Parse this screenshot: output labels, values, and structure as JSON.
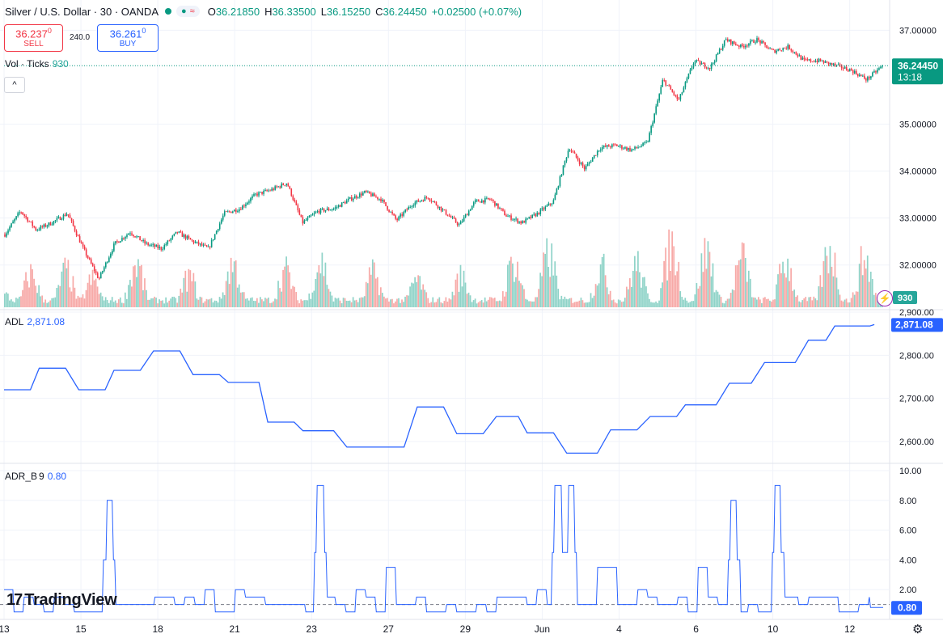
{
  "header": {
    "symbol": "Silver / U.S. Dollar · 30 · OANDA",
    "open_label": "O",
    "open": "36.21850",
    "high_label": "H",
    "high": "36.33500",
    "low_label": "L",
    "low": "36.15250",
    "close_label": "C",
    "close": "36.24450",
    "change": "+0.02500 (+0.07%)"
  },
  "trade": {
    "sell_price": "36.237",
    "sell_sup": "0",
    "sell_label": "SELL",
    "spread": "240.0",
    "buy_price": "36.261",
    "buy_sup": "0",
    "buy_label": "BUY"
  },
  "vol_legend": {
    "name": "Vol · Ticks",
    "value": "930"
  },
  "adl_legend": {
    "name": "ADL",
    "value": "2,871.08"
  },
  "adr_legend": {
    "name": "ADR_B",
    "param": "9",
    "value": "0.80"
  },
  "brand": {
    "name": "TradingView"
  },
  "icons": {
    "collapse": "chevron-up-icon",
    "settings": "gear-icon",
    "alert": "lightning-icon",
    "logo": "tradingview-logo-icon"
  },
  "colors": {
    "up": "#089981",
    "down": "#f23645",
    "vol_up": "#8fd3c8",
    "vol_down": "#f7a9a7",
    "indicator": "#2962ff"
  },
  "chart_data": [
    {
      "type": "candlestick",
      "title": "Silver / U.S. Dollar · 30 · OANDA",
      "x_tick_labels": [
        "13",
        "15",
        "18",
        "21",
        "23",
        "27",
        "29",
        "Jun",
        "4",
        "6",
        "10",
        "12"
      ],
      "ylim": [
        31.1,
        37.3
      ],
      "y_tick_labels": [
        "37.00000",
        "35.00000",
        "34.00000",
        "33.00000",
        "32.00000"
      ],
      "last_price": "36.24450",
      "countdown": "13:18",
      "close_path": [
        32.65,
        33.15,
        32.75,
        32.9,
        33.1,
        32.35,
        31.7,
        32.45,
        32.7,
        32.45,
        32.35,
        32.7,
        32.5,
        32.35,
        33.1,
        33.2,
        33.5,
        33.6,
        33.75,
        32.9,
        33.15,
        33.2,
        33.4,
        33.55,
        33.4,
        32.95,
        33.3,
        33.45,
        33.15,
        32.85,
        33.35,
        33.4,
        33.05,
        32.9,
        33.1,
        33.35,
        34.5,
        34.05,
        34.5,
        34.55,
        34.45,
        34.6,
        35.95,
        35.5,
        36.35,
        36.2,
        36.8,
        36.65,
        36.8,
        36.55,
        36.65,
        36.35,
        36.35,
        36.25,
        36.15,
        35.95,
        36.24
      ]
    },
    {
      "type": "bar",
      "name": "Vol · Ticks",
      "last_value": "930",
      "peaks": [
        [
          0.0,
          0.2
        ],
        [
          0.03,
          0.55
        ],
        [
          0.07,
          0.6
        ],
        [
          0.1,
          0.45
        ],
        [
          0.15,
          0.7
        ],
        [
          0.21,
          0.5
        ],
        [
          0.26,
          0.7
        ],
        [
          0.32,
          0.6
        ],
        [
          0.36,
          0.75
        ],
        [
          0.42,
          0.55
        ],
        [
          0.47,
          0.45
        ],
        [
          0.52,
          0.5
        ],
        [
          0.58,
          0.75
        ],
        [
          0.62,
          0.85
        ],
        [
          0.68,
          0.65
        ],
        [
          0.72,
          0.7
        ],
        [
          0.76,
          1.0
        ],
        [
          0.8,
          0.9
        ],
        [
          0.84,
          0.8
        ],
        [
          0.89,
          0.75
        ],
        [
          0.94,
          0.95
        ],
        [
          0.98,
          0.8
        ]
      ]
    },
    {
      "type": "line",
      "name": "ADL",
      "last_value": "2,871.08",
      "ylim": [
        2555,
        2900
      ],
      "y_tick_labels": [
        "2,900.00",
        "2,800.00",
        "2,700.00",
        "2,600.00"
      ],
      "steps": [
        [
          0,
          2720
        ],
        [
          0.03,
          2720
        ],
        [
          0.04,
          2770
        ],
        [
          0.07,
          2770
        ],
        [
          0.085,
          2720
        ],
        [
          0.115,
          2720
        ],
        [
          0.125,
          2765
        ],
        [
          0.155,
          2765
        ],
        [
          0.17,
          2810
        ],
        [
          0.2,
          2810
        ],
        [
          0.215,
          2755
        ],
        [
          0.245,
          2755
        ],
        [
          0.255,
          2737
        ],
        [
          0.29,
          2737
        ],
        [
          0.3,
          2645
        ],
        [
          0.33,
          2645
        ],
        [
          0.34,
          2625
        ],
        [
          0.375,
          2625
        ],
        [
          0.39,
          2587
        ],
        [
          0.455,
          2587
        ],
        [
          0.47,
          2680
        ],
        [
          0.5,
          2680
        ],
        [
          0.515,
          2618
        ],
        [
          0.545,
          2618
        ],
        [
          0.56,
          2658
        ],
        [
          0.585,
          2658
        ],
        [
          0.595,
          2620
        ],
        [
          0.625,
          2620
        ],
        [
          0.64,
          2573
        ],
        [
          0.675,
          2573
        ],
        [
          0.69,
          2627
        ],
        [
          0.72,
          2627
        ],
        [
          0.735,
          2658
        ],
        [
          0.765,
          2658
        ],
        [
          0.775,
          2685
        ],
        [
          0.81,
          2685
        ],
        [
          0.825,
          2735
        ],
        [
          0.85,
          2735
        ],
        [
          0.865,
          2783
        ],
        [
          0.9,
          2783
        ],
        [
          0.915,
          2835
        ],
        [
          0.935,
          2835
        ],
        [
          0.945,
          2868
        ],
        [
          0.985,
          2868
        ],
        [
          0.99,
          2871.08
        ]
      ]
    },
    {
      "type": "line",
      "name": "ADR_B",
      "param": "9",
      "last_value": "0.80",
      "ylim": [
        0,
        10
      ],
      "y_tick_labels": [
        "10.00",
        "8.00",
        "6.00",
        "4.00",
        "2.00"
      ],
      "reference_line": 1.0,
      "spikes": [
        [
          0.12,
          8.0
        ],
        [
          0.36,
          9.0
        ],
        [
          0.63,
          9.0
        ],
        [
          0.645,
          9.0
        ],
        [
          0.83,
          8.0
        ],
        [
          0.88,
          9.0
        ]
      ]
    }
  ]
}
